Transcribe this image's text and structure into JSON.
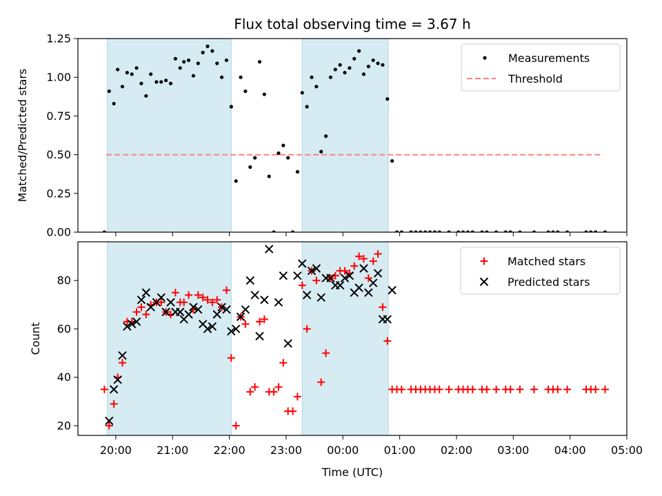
{
  "chart_data": [
    {
      "type": "scatter",
      "panel": "top",
      "title": "Flux total observing time = 3.67 h",
      "xlabel": "",
      "ylabel": "Matched/Predicted stars",
      "ylim": [
        0,
        1.25
      ],
      "yticks": [
        "0.00",
        "0.25",
        "0.50",
        "0.75",
        "1.00",
        "1.25"
      ],
      "ytick_values": [
        0,
        0.25,
        0.5,
        0.75,
        1.0,
        1.25
      ],
      "legend": {
        "placement": "top-right",
        "entries": [
          "Measurements",
          "Threshold"
        ]
      },
      "threshold": {
        "name": "Threshold",
        "value": 0.5,
        "x_start": "19:50",
        "x_end": "04:35",
        "color": "#ff7f7f"
      },
      "series": [
        {
          "name": "Measurements",
          "color": "#000000",
          "points": [
            [
              "19:48",
              0.0
            ],
            [
              "19:53",
              0.91
            ],
            [
              "19:58",
              0.83
            ],
            [
              "20:02",
              1.05
            ],
            [
              "20:07",
              0.94
            ],
            [
              "20:12",
              1.03
            ],
            [
              "20:17",
              1.02
            ],
            [
              "20:22",
              1.06
            ],
            [
              "20:27",
              0.96
            ],
            [
              "20:32",
              0.88
            ],
            [
              "20:37",
              1.02
            ],
            [
              "20:43",
              0.97
            ],
            [
              "20:48",
              0.97
            ],
            [
              "20:53",
              0.98
            ],
            [
              "20:58",
              0.96
            ],
            [
              "21:03",
              1.12
            ],
            [
              "21:08",
              1.06
            ],
            [
              "21:12",
              1.1
            ],
            [
              "21:17",
              1.11
            ],
            [
              "21:22",
              1.01
            ],
            [
              "21:27",
              1.09
            ],
            [
              "21:32",
              1.16
            ],
            [
              "21:37",
              1.2
            ],
            [
              "21:42",
              1.17
            ],
            [
              "21:47",
              1.09
            ],
            [
              "21:52",
              1.0
            ],
            [
              "21:57",
              1.11
            ],
            [
              "22:02",
              0.81
            ],
            [
              "22:07",
              0.33
            ],
            [
              "22:12",
              1.0
            ],
            [
              "22:17",
              0.91
            ],
            [
              "22:22",
              0.42
            ],
            [
              "22:27",
              0.48
            ],
            [
              "22:32",
              1.1
            ],
            [
              "22:37",
              0.89
            ],
            [
              "22:42",
              0.36
            ],
            [
              "22:47",
              0.0
            ],
            [
              "22:52",
              0.51
            ],
            [
              "22:57",
              0.56
            ],
            [
              "23:02",
              0.48
            ],
            [
              "23:07",
              0.0
            ],
            [
              "23:12",
              0.39
            ],
            [
              "23:17",
              0.9
            ],
            [
              "23:22",
              0.81
            ],
            [
              "23:27",
              1.0
            ],
            [
              "23:32",
              0.94
            ],
            [
              "23:37",
              0.52
            ],
            [
              "23:42",
              0.62
            ],
            [
              "23:47",
              1.0
            ],
            [
              "23:52",
              1.05
            ],
            [
              "23:57",
              1.08
            ],
            [
              "00:02",
              1.03
            ],
            [
              "00:07",
              1.06
            ],
            [
              "00:12",
              1.12
            ],
            [
              "00:17",
              1.17
            ],
            [
              "00:22",
              1.02
            ],
            [
              "00:27",
              1.07
            ],
            [
              "00:32",
              1.11
            ],
            [
              "00:37",
              1.09
            ],
            [
              "00:42",
              1.08
            ],
            [
              "00:47",
              0.86
            ],
            [
              "00:52",
              0.46
            ],
            [
              "00:57",
              0.0
            ],
            [
              "01:02",
              0.0
            ],
            [
              "01:12",
              0.0
            ],
            [
              "01:17",
              0.0
            ],
            [
              "01:22",
              0.0
            ],
            [
              "01:27",
              0.0
            ],
            [
              "01:32",
              0.0
            ],
            [
              "01:37",
              0.0
            ],
            [
              "01:42",
              0.0
            ],
            [
              "01:52",
              0.0
            ],
            [
              "02:02",
              0.0
            ],
            [
              "02:07",
              0.0
            ],
            [
              "02:12",
              0.0
            ],
            [
              "02:17",
              0.0
            ],
            [
              "02:27",
              0.0
            ],
            [
              "02:32",
              0.0
            ],
            [
              "02:42",
              0.0
            ],
            [
              "02:52",
              0.0
            ],
            [
              "02:57",
              0.0
            ],
            [
              "03:07",
              0.0
            ],
            [
              "03:22",
              0.0
            ],
            [
              "03:37",
              0.0
            ],
            [
              "03:42",
              0.0
            ],
            [
              "03:47",
              0.0
            ],
            [
              "03:57",
              0.0
            ],
            [
              "04:17",
              0.0
            ],
            [
              "04:22",
              0.0
            ],
            [
              "04:27",
              0.0
            ],
            [
              "04:37",
              0.0
            ]
          ]
        }
      ]
    },
    {
      "type": "scatter",
      "panel": "bottom",
      "title": "",
      "xlabel": "Time (UTC)",
      "ylabel": "Count",
      "ylim": [
        16,
        96
      ],
      "yticks": [
        "20",
        "40",
        "60",
        "80"
      ],
      "ytick_values": [
        20,
        40,
        60,
        80
      ],
      "xlim": [
        "19:20",
        "05:00"
      ],
      "xticks": [
        "20:00",
        "21:00",
        "22:00",
        "23:00",
        "00:00",
        "01:00",
        "02:00",
        "03:00",
        "04:00",
        "05:00"
      ],
      "legend": {
        "placement": "top-right",
        "entries": [
          "Matched stars",
          "Predicted stars"
        ]
      },
      "series": [
        {
          "name": "Matched stars",
          "color": "#ff0000",
          "marker": "plus",
          "points": [
            [
              "19:48",
              35
            ],
            [
              "19:53",
              20
            ],
            [
              "19:58",
              29
            ],
            [
              "20:02",
              40
            ],
            [
              "20:07",
              46
            ],
            [
              "20:12",
              63
            ],
            [
              "20:17",
              63
            ],
            [
              "20:22",
              67
            ],
            [
              "20:27",
              69
            ],
            [
              "20:32",
              66
            ],
            [
              "20:37",
              70
            ],
            [
              "20:43",
              71
            ],
            [
              "20:48",
              71
            ],
            [
              "20:53",
              67
            ],
            [
              "20:58",
              66
            ],
            [
              "21:03",
              75
            ],
            [
              "21:08",
              71
            ],
            [
              "21:12",
              71
            ],
            [
              "21:17",
              74
            ],
            [
              "21:22",
              68
            ],
            [
              "21:27",
              74
            ],
            [
              "21:32",
              73
            ],
            [
              "21:37",
              72
            ],
            [
              "21:42",
              71
            ],
            [
              "21:47",
              72
            ],
            [
              "21:52",
              69
            ],
            [
              "21:57",
              76
            ],
            [
              "22:02",
              48
            ],
            [
              "22:07",
              20
            ],
            [
              "22:12",
              65
            ],
            [
              "22:17",
              62
            ],
            [
              "22:22",
              34
            ],
            [
              "22:27",
              36
            ],
            [
              "22:32",
              63
            ],
            [
              "22:37",
              64
            ],
            [
              "22:42",
              34
            ],
            [
              "22:47",
              34
            ],
            [
              "22:52",
              36
            ],
            [
              "22:57",
              46
            ],
            [
              "23:02",
              26
            ],
            [
              "23:07",
              26
            ],
            [
              "23:12",
              32
            ],
            [
              "23:17",
              78
            ],
            [
              "23:22",
              60
            ],
            [
              "23:27",
              84
            ],
            [
              "23:32",
              80
            ],
            [
              "23:37",
              38
            ],
            [
              "23:42",
              50
            ],
            [
              "23:47",
              81
            ],
            [
              "23:52",
              82
            ],
            [
              "23:57",
              84
            ],
            [
              "00:02",
              84
            ],
            [
              "00:07",
              83
            ],
            [
              "00:12",
              86
            ],
            [
              "00:17",
              90
            ],
            [
              "00:22",
              89
            ],
            [
              "00:27",
              81
            ],
            [
              "00:32",
              88
            ],
            [
              "00:37",
              91
            ],
            [
              "00:42",
              69
            ],
            [
              "00:47",
              55
            ],
            [
              "00:52",
              35
            ],
            [
              "00:57",
              35
            ],
            [
              "01:02",
              35
            ],
            [
              "01:12",
              35
            ],
            [
              "01:17",
              35
            ],
            [
              "01:22",
              35
            ],
            [
              "01:27",
              35
            ],
            [
              "01:32",
              35
            ],
            [
              "01:37",
              35
            ],
            [
              "01:42",
              35
            ],
            [
              "01:52",
              35
            ],
            [
              "02:02",
              35
            ],
            [
              "02:07",
              35
            ],
            [
              "02:12",
              35
            ],
            [
              "02:17",
              35
            ],
            [
              "02:27",
              35
            ],
            [
              "02:32",
              35
            ],
            [
              "02:42",
              35
            ],
            [
              "02:52",
              35
            ],
            [
              "02:57",
              35
            ],
            [
              "03:07",
              35
            ],
            [
              "03:22",
              35
            ],
            [
              "03:37",
              35
            ],
            [
              "03:42",
              35
            ],
            [
              "03:47",
              35
            ],
            [
              "03:57",
              35
            ],
            [
              "04:17",
              35
            ],
            [
              "04:22",
              35
            ],
            [
              "04:27",
              35
            ],
            [
              "04:37",
              35
            ]
          ]
        },
        {
          "name": "Predicted stars",
          "color": "#000000",
          "marker": "x",
          "points": [
            [
              "19:53",
              22
            ],
            [
              "19:58",
              35
            ],
            [
              "20:02",
              39
            ],
            [
              "20:07",
              49
            ],
            [
              "20:12",
              61
            ],
            [
              "20:17",
              62
            ],
            [
              "20:22",
              63
            ],
            [
              "20:27",
              72
            ],
            [
              "20:32",
              75
            ],
            [
              "20:37",
              69
            ],
            [
              "20:43",
              71
            ],
            [
              "20:48",
              73
            ],
            [
              "20:53",
              67
            ],
            [
              "20:58",
              71
            ],
            [
              "21:03",
              67
            ],
            [
              "21:08",
              67
            ],
            [
              "21:12",
              64
            ],
            [
              "21:17",
              66
            ],
            [
              "21:22",
              69
            ],
            [
              "21:27",
              68
            ],
            [
              "21:32",
              62
            ],
            [
              "21:37",
              60
            ],
            [
              "21:42",
              61
            ],
            [
              "21:47",
              66
            ],
            [
              "21:52",
              69
            ],
            [
              "21:57",
              68
            ],
            [
              "22:02",
              59
            ],
            [
              "22:07",
              60
            ],
            [
              "22:12",
              65
            ],
            [
              "22:17",
              68
            ],
            [
              "22:22",
              80
            ],
            [
              "22:27",
              74
            ],
            [
              "22:32",
              57
            ],
            [
              "22:37",
              72
            ],
            [
              "22:42",
              93
            ],
            [
              "22:52",
              71
            ],
            [
              "22:57",
              82
            ],
            [
              "23:02",
              54
            ],
            [
              "23:12",
              82
            ],
            [
              "23:17",
              87
            ],
            [
              "23:22",
              74
            ],
            [
              "23:27",
              84
            ],
            [
              "23:32",
              85
            ],
            [
              "23:37",
              73
            ],
            [
              "23:42",
              81
            ],
            [
              "23:47",
              81
            ],
            [
              "23:52",
              78
            ],
            [
              "23:57",
              78
            ],
            [
              "00:02",
              81
            ],
            [
              "00:07",
              82
            ],
            [
              "00:12",
              75
            ],
            [
              "00:17",
              77
            ],
            [
              "00:22",
              85
            ],
            [
              "00:27",
              75
            ],
            [
              "00:32",
              79
            ],
            [
              "00:37",
              83
            ],
            [
              "00:42",
              64
            ],
            [
              "00:47",
              64
            ],
            [
              "00:52",
              76
            ]
          ]
        }
      ]
    }
  ],
  "shared_x": {
    "xlim": [
      "19:20",
      "05:00"
    ],
    "observing_windows": [
      {
        "start": "19:51",
        "end": "22:02"
      },
      {
        "start": "23:17",
        "end": "00:48"
      }
    ],
    "window_color": "#add8e6"
  }
}
